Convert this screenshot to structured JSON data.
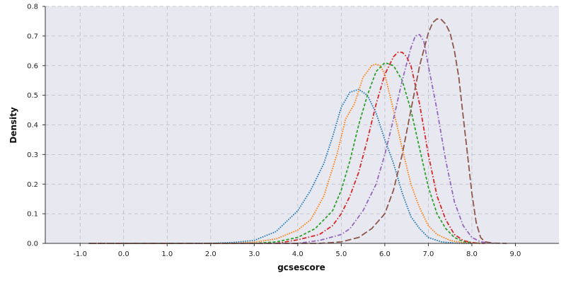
{
  "chart_data": {
    "type": "line",
    "title": "",
    "xlabel": "gcsescore",
    "ylabel": "Density",
    "xlim": [
      -1.8,
      10.0
    ],
    "ylim": [
      0.0,
      0.8
    ],
    "xticks": [
      "-1.0",
      "0.0",
      "1.0",
      "2.0",
      "3.0",
      "4.0",
      "5.0",
      "6.0",
      "7.0",
      "8.0",
      "9.0"
    ],
    "yticks": [
      "0.0",
      "0.1",
      "0.2",
      "0.3",
      "0.4",
      "0.5",
      "0.6",
      "0.7",
      "0.8"
    ],
    "grid": true,
    "background": "#e8e8f0",
    "series": [
      {
        "color": "#1f77b4",
        "dash": "dotted",
        "x": [
          -0.8,
          2.0,
          2.5,
          3.0,
          3.5,
          4.0,
          4.3,
          4.6,
          4.8,
          5.0,
          5.2,
          5.4,
          5.6,
          5.8,
          6.0,
          6.2,
          6.4,
          6.6,
          6.8,
          7.0,
          7.3,
          7.6,
          8.0
        ],
        "y": [
          0.0,
          0.0,
          0.003,
          0.01,
          0.04,
          0.11,
          0.18,
          0.27,
          0.36,
          0.46,
          0.51,
          0.52,
          0.5,
          0.44,
          0.35,
          0.27,
          0.17,
          0.09,
          0.05,
          0.02,
          0.005,
          0.001,
          0.0
        ]
      },
      {
        "color": "#ff7f0e",
        "dash": "dotted",
        "x": [
          -0.8,
          2.5,
          3.0,
          3.5,
          4.0,
          4.3,
          4.6,
          4.9,
          5.1,
          5.3,
          5.5,
          5.7,
          5.8,
          5.9,
          6.0,
          6.2,
          6.4,
          6.6,
          6.8,
          7.0,
          7.2,
          7.5,
          7.8,
          8.2
        ],
        "y": [
          0.0,
          0.0,
          0.004,
          0.015,
          0.045,
          0.08,
          0.16,
          0.3,
          0.42,
          0.47,
          0.56,
          0.6,
          0.605,
          0.6,
          0.57,
          0.45,
          0.32,
          0.2,
          0.12,
          0.06,
          0.03,
          0.01,
          0.002,
          0.0
        ]
      },
      {
        "color": "#2ca02c",
        "dash": "dashed",
        "x": [
          -0.8,
          3.0,
          3.5,
          4.0,
          4.4,
          4.8,
          5.0,
          5.2,
          5.4,
          5.6,
          5.8,
          6.0,
          6.2,
          6.4,
          6.6,
          6.8,
          7.0,
          7.2,
          7.4,
          7.6,
          7.8,
          8.2
        ],
        "y": [
          0.0,
          0.0,
          0.005,
          0.02,
          0.05,
          0.11,
          0.18,
          0.28,
          0.4,
          0.5,
          0.58,
          0.61,
          0.6,
          0.55,
          0.45,
          0.32,
          0.19,
          0.1,
          0.05,
          0.02,
          0.006,
          0.0
        ]
      },
      {
        "color": "#d62728",
        "dash": "dashdot",
        "x": [
          -0.8,
          3.5,
          4.0,
          4.5,
          4.8,
          5.0,
          5.2,
          5.4,
          5.6,
          5.8,
          6.0,
          6.2,
          6.3,
          6.4,
          6.5,
          6.6,
          6.8,
          7.0,
          7.2,
          7.4,
          7.6,
          7.8,
          8.0,
          8.3
        ],
        "y": [
          0.0,
          0.0,
          0.012,
          0.03,
          0.06,
          0.1,
          0.16,
          0.24,
          0.35,
          0.47,
          0.57,
          0.63,
          0.645,
          0.645,
          0.63,
          0.6,
          0.47,
          0.3,
          0.16,
          0.08,
          0.03,
          0.01,
          0.002,
          0.0
        ]
      },
      {
        "color": "#9467bd",
        "dash": "dashdot",
        "x": [
          -0.8,
          4.0,
          4.5,
          5.0,
          5.2,
          5.5,
          5.8,
          6.0,
          6.2,
          6.4,
          6.6,
          6.7,
          6.8,
          6.9,
          7.0,
          7.2,
          7.4,
          7.6,
          7.8,
          8.0,
          8.2,
          8.5
        ],
        "y": [
          0.0,
          0.0,
          0.01,
          0.03,
          0.05,
          0.11,
          0.2,
          0.3,
          0.42,
          0.55,
          0.66,
          0.7,
          0.705,
          0.68,
          0.6,
          0.45,
          0.28,
          0.14,
          0.06,
          0.02,
          0.005,
          0.0
        ]
      },
      {
        "color": "#8c564b",
        "dash": "longdash",
        "x": [
          -0.8,
          4.5,
          5.0,
          5.4,
          5.7,
          6.0,
          6.2,
          6.4,
          6.6,
          6.8,
          7.0,
          7.1,
          7.2,
          7.3,
          7.4,
          7.5,
          7.6,
          7.7,
          7.8,
          7.9,
          8.0,
          8.1,
          8.2,
          8.3,
          8.5,
          8.8
        ],
        "y": [
          0.0,
          0.0,
          0.005,
          0.02,
          0.05,
          0.1,
          0.18,
          0.3,
          0.45,
          0.6,
          0.71,
          0.745,
          0.758,
          0.755,
          0.74,
          0.71,
          0.65,
          0.56,
          0.43,
          0.3,
          0.17,
          0.07,
          0.02,
          0.005,
          0.001,
          0.0
        ]
      }
    ]
  }
}
